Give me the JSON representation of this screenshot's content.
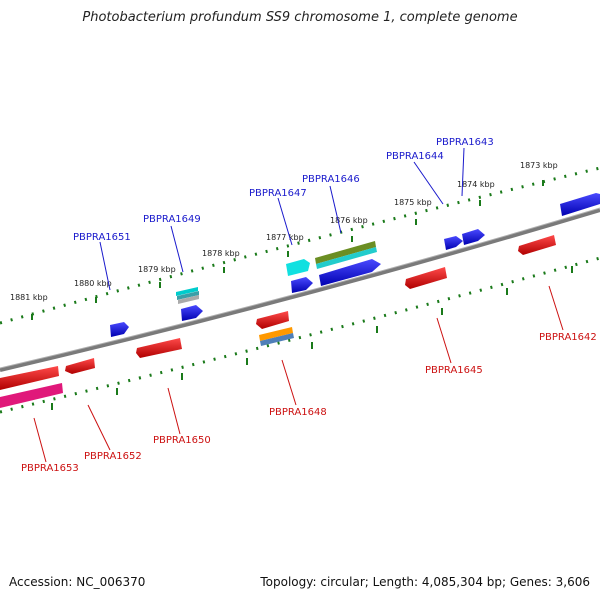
{
  "title": "Photobacterium profundum SS9 chromosome 1, complete genome",
  "accession_label": "Accession: NC_006370",
  "topology_label": "Topology: circular; Length: 4,085,304 bp; Genes: 3,606",
  "ruler_labels": [
    "1881 kbp",
    "1880 kbp",
    "1879 kbp",
    "1878 kbp",
    "1877 kbp",
    "1876 kbp",
    "1875 kbp",
    "1874 kbp",
    "1873 kbp"
  ],
  "plus_genes": [
    "PBPRA1651",
    "PBPRA1649",
    "PBPRA1647",
    "PBPRA1646",
    "PBPRA1644",
    "PBPRA1643"
  ],
  "minus_genes": [
    "PBPRA1653",
    "PBPRA1652",
    "PBPRA1650",
    "PBPRA1648",
    "PBPRA1645",
    "PBPRA1642"
  ],
  "colors": {
    "backbone": "#777777",
    "ruler": "#1a7a1a",
    "plus_label": "#1a1acc",
    "minus_label": "#cc1111",
    "gene_blue": "#1010dd",
    "gene_red": "#dd1111",
    "gene_cyan": "#00dddd",
    "gene_olive": "#6b8e23",
    "gene_pink": "#e0187a",
    "gene_orange": "#ff9900"
  }
}
